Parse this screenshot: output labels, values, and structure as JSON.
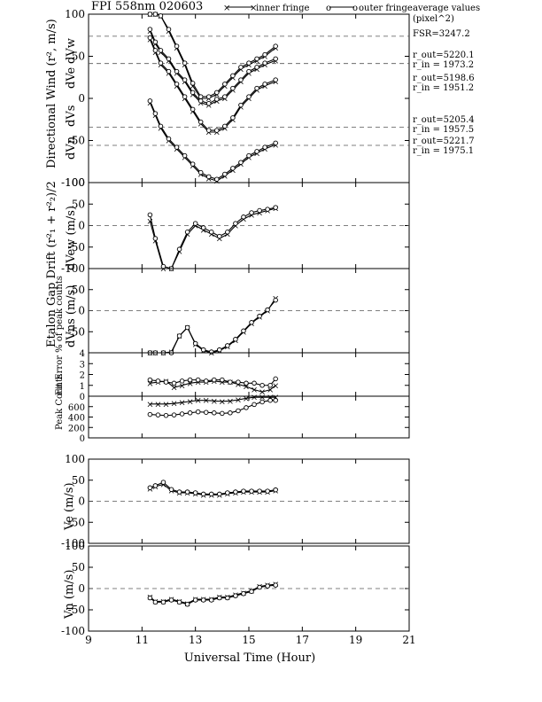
{
  "header": {
    "title": "FPI 558nm 020603",
    "legend_inner": "inner fringe",
    "legend_outer": "outer fringe",
    "avg_title": "average values",
    "avg_unit": "(pixel^2)"
  },
  "side_notes": {
    "fsr": "FSR=3247.2",
    "w_out": "r_out=5220.1",
    "w_in": "r_in = 1973.2",
    "e_out": "r_out=5198.6",
    "e_in": "r_in = 1951.2",
    "s_out": "r_out=5205.4",
    "s_in": "r_in = 1957.5",
    "n_out": "r_out=5221.7",
    "n_in": "r_in = 1975.1"
  },
  "labels": {
    "xlabel": "Universal Time (Hour)",
    "p1_ylabel": "Directional Wind (r², m/s)",
    "p1_dirs": [
      "dVw",
      "dVe",
      "dVs",
      "dVn"
    ],
    "gap_ylabel": "Etalon Gap Drift  (r²₁ + r²₂)/2",
    "p2_ylabel": "dVew (m/s)",
    "p3_ylabel": "dVns (m/s)",
    "p4_ylabel": "Fit Error % of peak counts",
    "p5_ylabel": "Peak Counts",
    "p6_ylabel": "Ve (m/s)",
    "p7_ylabel": "Vn (m/s)"
  },
  "chart_data": [
    {
      "type": "line",
      "name": "directional_wind",
      "x_ticks": [
        9,
        11,
        13,
        15,
        17,
        19,
        21
      ],
      "y_ticks": [
        100,
        50,
        0,
        -50,
        -100
      ],
      "y_tick_labels": [
        "100",
        "50",
        "0",
        "-50",
        "-100"
      ],
      "ylim": [
        -100,
        100
      ],
      "xlim": [
        9,
        21
      ],
      "series": [
        {
          "name": "dVw",
          "offset": 0,
          "x": [
            11.3,
            11.5,
            11.7,
            12.0,
            12.3,
            12.6,
            12.9,
            13.2,
            13.5,
            13.8,
            14.1,
            14.4,
            14.7,
            15.0,
            15.3,
            15.6,
            16.0
          ],
          "inner": [
            100,
            100,
            98,
            80,
            60,
            40,
            15,
            0,
            0,
            5,
            15,
            25,
            35,
            40,
            45,
            50,
            60
          ],
          "outer": [
            100,
            100,
            98,
            82,
            62,
            42,
            18,
            2,
            2,
            7,
            17,
            27,
            37,
            42,
            47,
            52,
            62
          ]
        },
        {
          "name": "dVe",
          "offset": 0,
          "x": [
            11.3,
            11.5,
            11.7,
            12.0,
            12.3,
            12.6,
            12.9,
            13.2,
            13.5,
            13.8,
            14.1,
            14.4,
            14.7,
            15.0,
            15.3,
            15.6,
            16.0
          ],
          "inner": [
            80,
            65,
            55,
            45,
            30,
            20,
            5,
            -5,
            -8,
            -3,
            0,
            10,
            20,
            30,
            35,
            40,
            45
          ],
          "outer": [
            82,
            67,
            57,
            47,
            32,
            22,
            7,
            -3,
            -6,
            -1,
            2,
            12,
            22,
            32,
            37,
            42,
            47
          ]
        },
        {
          "name": "dVs",
          "offset": 0,
          "x": [
            11.3,
            11.5,
            11.7,
            12.0,
            12.3,
            12.6,
            12.9,
            13.2,
            13.5,
            13.8,
            14.1,
            14.4,
            14.7,
            15.0,
            15.3,
            15.6,
            16.0
          ],
          "inner": [
            70,
            55,
            40,
            30,
            15,
            0,
            -15,
            -30,
            -40,
            -40,
            -35,
            -25,
            -10,
            0,
            10,
            15,
            20
          ],
          "outer": [
            72,
            57,
            42,
            32,
            17,
            2,
            -13,
            -28,
            -38,
            -38,
            -33,
            -23,
            -8,
            2,
            12,
            17,
            22
          ]
        },
        {
          "name": "dVn",
          "offset": 0,
          "x": [
            11.3,
            11.5,
            11.7,
            12.0,
            12.3,
            12.6,
            12.9,
            13.2,
            13.5,
            13.8,
            14.1,
            14.4,
            14.7,
            15.0,
            15.3,
            15.6,
            16.0
          ],
          "inner": [
            -5,
            -20,
            -35,
            -50,
            -60,
            -70,
            -80,
            -90,
            -95,
            -98,
            -92,
            -85,
            -78,
            -70,
            -65,
            -60,
            -55
          ],
          "outer": [
            -3,
            -18,
            -33,
            -48,
            -58,
            -68,
            -78,
            -88,
            -93,
            -96,
            -90,
            -83,
            -76,
            -68,
            -63,
            -58,
            -53
          ]
        }
      ]
    },
    {
      "type": "line",
      "name": "dVew",
      "y_ticks": [
        100,
        50,
        0,
        -50,
        -100
      ],
      "y_tick_labels": [
        "100",
        "50",
        "0",
        "-50",
        "-100"
      ],
      "ylim": [
        -100,
        100
      ],
      "x": [
        11.3,
        11.5,
        11.8,
        12.1,
        12.4,
        12.7,
        13.0,
        13.3,
        13.6,
        13.9,
        14.2,
        14.5,
        14.8,
        15.1,
        15.4,
        15.7,
        16.0
      ],
      "inner": [
        10,
        -35,
        -100,
        -105,
        -60,
        -20,
        0,
        -10,
        -20,
        -30,
        -20,
        0,
        15,
        25,
        30,
        35,
        40
      ],
      "outer": [
        25,
        -30,
        -95,
        -100,
        -55,
        -15,
        5,
        -5,
        -15,
        -25,
        -15,
        5,
        20,
        30,
        35,
        38,
        42
      ]
    },
    {
      "type": "line",
      "name": "dVns",
      "y_ticks": [
        50,
        0,
        -50
      ],
      "y_tick_labels": [
        "50",
        "0",
        "-50"
      ],
      "ylim": [
        -100,
        100
      ],
      "x": [
        11.3,
        11.5,
        11.8,
        12.1,
        12.4,
        12.7,
        13.0,
        13.3,
        13.6,
        13.9,
        14.2,
        14.5,
        14.8,
        15.1,
        15.4,
        15.7,
        16.0
      ],
      "inner": [
        -100,
        -100,
        -100,
        -98,
        -60,
        -40,
        -80,
        -95,
        -100,
        -95,
        -85,
        -70,
        -50,
        -30,
        -15,
        0,
        30
      ],
      "outer": [
        -100,
        -100,
        -100,
        -100,
        -60,
        -40,
        -78,
        -93,
        -98,
        -93,
        -83,
        -68,
        -48,
        -28,
        -13,
        2,
        25
      ]
    },
    {
      "type": "line",
      "name": "fit_error",
      "y_ticks": [
        4,
        3,
        2,
        1,
        0
      ],
      "y_tick_labels": [
        "4",
        "3",
        "2",
        "1",
        "0"
      ],
      "ylim": [
        0,
        4
      ],
      "x": [
        11.3,
        11.6,
        11.9,
        12.2,
        12.5,
        12.8,
        13.1,
        13.4,
        13.7,
        14.0,
        14.3,
        14.6,
        14.9,
        15.2,
        15.5,
        15.8,
        16.0
      ],
      "inner": [
        1.2,
        1.3,
        1.4,
        0.8,
        1.0,
        1.2,
        1.3,
        1.3,
        1.4,
        1.3,
        1.3,
        1.1,
        0.9,
        0.6,
        0.4,
        0.6,
        1.0
      ],
      "outer": [
        1.5,
        1.4,
        1.3,
        1.2,
        1.4,
        1.5,
        1.5,
        1.4,
        1.5,
        1.5,
        1.3,
        1.3,
        1.2,
        1.2,
        1.0,
        1.0,
        1.6
      ]
    },
    {
      "type": "line",
      "name": "peak_counts",
      "y_ticks": [
        600,
        400,
        200,
        0
      ],
      "y_tick_labels": [
        "600",
        "400",
        "200",
        "0"
      ],
      "ylim": [
        0,
        800
      ],
      "x": [
        11.3,
        11.6,
        11.9,
        12.2,
        12.5,
        12.8,
        13.1,
        13.4,
        13.7,
        14.0,
        14.3,
        14.6,
        14.9,
        15.2,
        15.5,
        15.8,
        16.0
      ],
      "inner": [
        650,
        650,
        650,
        660,
        680,
        700,
        720,
        720,
        710,
        700,
        710,
        730,
        760,
        780,
        780,
        780,
        780
      ],
      "outer": [
        450,
        440,
        430,
        440,
        460,
        480,
        500,
        490,
        480,
        470,
        480,
        520,
        580,
        640,
        690,
        720,
        720
      ]
    },
    {
      "type": "line",
      "name": "Ve",
      "y_ticks": [
        100,
        50,
        0,
        -50,
        -100
      ],
      "y_tick_labels": [
        "100",
        "50",
        "0",
        "-50",
        "-100"
      ],
      "ylim": [
        -100,
        100
      ],
      "x": [
        11.3,
        11.5,
        11.8,
        12.1,
        12.4,
        12.7,
        13.0,
        13.3,
        13.6,
        13.9,
        14.2,
        14.5,
        14.8,
        15.1,
        15.4,
        15.7,
        16.0
      ],
      "inner": [
        30,
        35,
        40,
        25,
        20,
        20,
        18,
        15,
        15,
        15,
        18,
        20,
        22,
        22,
        22,
        22,
        25
      ],
      "outer": [
        32,
        37,
        45,
        28,
        22,
        22,
        20,
        17,
        17,
        17,
        20,
        22,
        24,
        24,
        24,
        24,
        27
      ]
    },
    {
      "type": "line",
      "name": "Vn",
      "y_ticks": [
        100,
        50,
        0,
        -50,
        -100
      ],
      "y_tick_labels": [
        "100",
        "50",
        "0",
        "-50",
        "-100"
      ],
      "ylim": [
        -100,
        100
      ],
      "x": [
        11.3,
        11.5,
        11.8,
        12.1,
        12.4,
        12.7,
        13.0,
        13.3,
        13.6,
        13.9,
        14.2,
        14.5,
        14.8,
        15.1,
        15.4,
        15.7,
        16.0
      ],
      "inner": [
        -20,
        -30,
        -30,
        -25,
        -30,
        -35,
        -25,
        -25,
        -25,
        -20,
        -20,
        -15,
        -10,
        -5,
        5,
        8,
        10
      ],
      "outer": [
        -22,
        -32,
        -32,
        -27,
        -32,
        -37,
        -27,
        -27,
        -27,
        -22,
        -22,
        -17,
        -12,
        -7,
        3,
        6,
        8
      ]
    }
  ],
  "x_tick_labels": [
    "9",
    "11",
    "13",
    "15",
    "17",
    "19",
    "21"
  ]
}
